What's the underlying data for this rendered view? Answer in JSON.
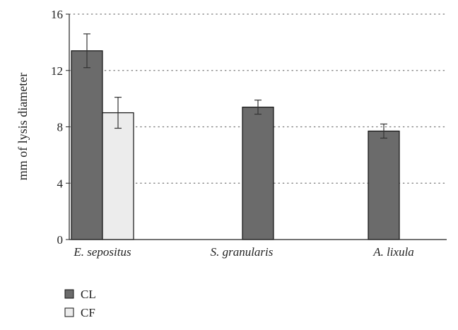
{
  "chart_data": {
    "type": "bar",
    "ylabel": "mm of lysis diameter",
    "xlabel": "",
    "ylim": [
      0,
      16
    ],
    "yticks": [
      "0",
      "4",
      "8",
      "12",
      "16"
    ],
    "categories": [
      "E. sepositus",
      "S. granularis",
      "A. lixula"
    ],
    "grid": "horizontal dotted",
    "legend_position": "bottom-left",
    "series": [
      {
        "name": "CL",
        "color": "#6b6b6b",
        "values": [
          13.4,
          9.4,
          7.7
        ],
        "errors": [
          1.2,
          0.5,
          0.5
        ]
      },
      {
        "name": "CF",
        "color": "#ececec",
        "values": [
          9.0,
          null,
          null
        ],
        "errors": [
          1.1,
          null,
          null
        ]
      }
    ]
  }
}
